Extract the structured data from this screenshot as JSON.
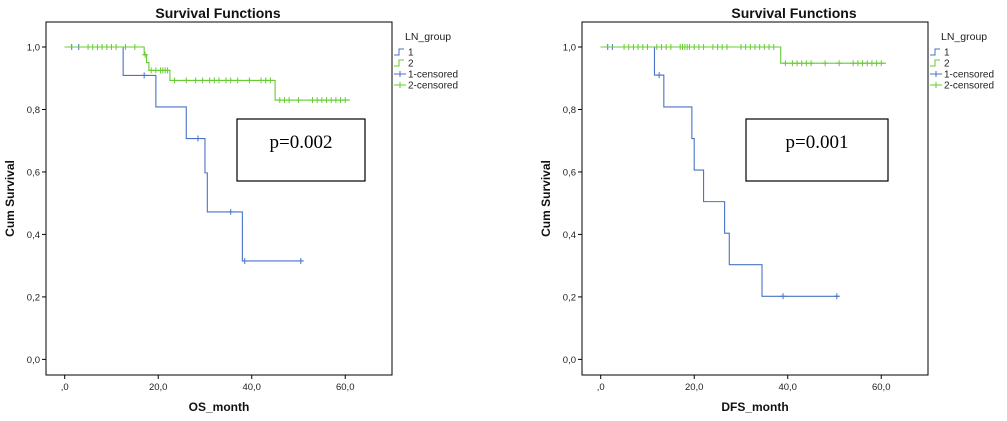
{
  "colors": {
    "group1": "#4a72c8",
    "group2": "#66cc33",
    "frame": "#000000",
    "background": "#ffffff"
  },
  "chart_data": [
    {
      "type": "line",
      "title": "Survival Functions",
      "xlabel": "OS_month",
      "ylabel": "Cum Survival",
      "xlim": [
        -4,
        70
      ],
      "ylim": [
        -0.05,
        1.08
      ],
      "xticks": [
        0,
        20,
        40,
        60
      ],
      "xtick_labels": [
        ",0",
        "20,0",
        "40,0",
        "60,0"
      ],
      "yticks": [
        0,
        0.2,
        0.4,
        0.6,
        0.8,
        1.0
      ],
      "ytick_labels": [
        "0,0",
        "0,2",
        "0,4",
        "0,6",
        "0,8",
        "1,0"
      ],
      "legend_title": "LN_group",
      "legend": [
        "1",
        "2",
        "1-censored",
        "2-censored"
      ],
      "annotation": "p=0.002",
      "series": [
        {
          "name": "1",
          "steps": [
            [
              0,
              1.0
            ],
            [
              12.5,
              0.909
            ],
            [
              19.5,
              0.808
            ],
            [
              26.0,
              0.707
            ],
            [
              30.0,
              0.597
            ],
            [
              30.5,
              0.472
            ],
            [
              38.0,
              0.315
            ],
            [
              51.0,
              0.315
            ]
          ],
          "censored": [
            [
              1.5,
              1.0
            ],
            [
              3.0,
              1.0
            ],
            [
              17.0,
              0.909
            ],
            [
              28.5,
              0.707
            ],
            [
              35.5,
              0.472
            ],
            [
              38.5,
              0.315
            ],
            [
              50.5,
              0.315
            ]
          ]
        },
        {
          "name": "2",
          "steps": [
            [
              0,
              1.0
            ],
            [
              17.0,
              0.975
            ],
            [
              17.5,
              0.95
            ],
            [
              18.0,
              0.925
            ],
            [
              22.5,
              0.893
            ],
            [
              45.0,
              0.83
            ],
            [
              61.0,
              0.83
            ]
          ],
          "censored": [
            [
              5,
              1.0
            ],
            [
              6,
              1.0
            ],
            [
              7,
              1.0
            ],
            [
              8,
              1.0
            ],
            [
              9,
              1.0
            ],
            [
              10,
              1.0
            ],
            [
              11,
              1.0
            ],
            [
              13,
              1.0
            ],
            [
              15,
              1.0
            ],
            [
              17.2,
              0.975
            ],
            [
              18.5,
              0.925
            ],
            [
              19.5,
              0.925
            ],
            [
              20.5,
              0.925
            ],
            [
              21.0,
              0.925
            ],
            [
              21.5,
              0.925
            ],
            [
              22.0,
              0.925
            ],
            [
              23.5,
              0.893
            ],
            [
              26,
              0.893
            ],
            [
              28,
              0.893
            ],
            [
              29.5,
              0.893
            ],
            [
              31,
              0.893
            ],
            [
              32,
              0.893
            ],
            [
              33,
              0.893
            ],
            [
              34.5,
              0.893
            ],
            [
              35.5,
              0.893
            ],
            [
              37,
              0.893
            ],
            [
              39.5,
              0.893
            ],
            [
              42,
              0.893
            ],
            [
              43,
              0.893
            ],
            [
              44,
              0.893
            ],
            [
              46,
              0.83
            ],
            [
              47,
              0.83
            ],
            [
              48,
              0.83
            ],
            [
              50,
              0.83
            ],
            [
              53,
              0.83
            ],
            [
              54,
              0.83
            ],
            [
              55,
              0.83
            ],
            [
              56,
              0.83
            ],
            [
              57,
              0.83
            ],
            [
              58,
              0.83
            ],
            [
              59,
              0.83
            ],
            [
              60,
              0.83
            ]
          ]
        }
      ]
    },
    {
      "type": "line",
      "title": "Survival Functions",
      "xlabel": "DFS_month",
      "ylabel": "Cum Survival",
      "xlim": [
        -4,
        70
      ],
      "ylim": [
        -0.05,
        1.08
      ],
      "xticks": [
        0,
        20,
        40,
        60
      ],
      "xtick_labels": [
        ",0",
        "20,0",
        "40,0",
        "60,0"
      ],
      "yticks": [
        0,
        0.2,
        0.4,
        0.6,
        0.8,
        1.0
      ],
      "ytick_labels": [
        "0,0",
        "0,2",
        "0,4",
        "0,6",
        "0,8",
        "1,0"
      ],
      "legend_title": "LN_group",
      "legend": [
        "1",
        "2",
        "1-censored",
        "2-censored"
      ],
      "annotation": "p=0.001",
      "series": [
        {
          "name": "1",
          "steps": [
            [
              0,
              1.0
            ],
            [
              11.5,
              0.91
            ],
            [
              13.5,
              0.808
            ],
            [
              19.5,
              0.707
            ],
            [
              20.0,
              0.606
            ],
            [
              22.0,
              0.505
            ],
            [
              26.5,
              0.404
            ],
            [
              27.5,
              0.303
            ],
            [
              34.5,
              0.202
            ],
            [
              51.0,
              0.202
            ]
          ],
          "censored": [
            [
              1.5,
              1.0
            ],
            [
              2.5,
              1.0
            ],
            [
              12.5,
              0.91
            ],
            [
              39.0,
              0.202
            ],
            [
              50.5,
              0.202
            ]
          ]
        },
        {
          "name": "2",
          "steps": [
            [
              0,
              1.0
            ],
            [
              38.5,
              0.948
            ],
            [
              61.0,
              0.948
            ]
          ],
          "censored": [
            [
              5,
              1.0
            ],
            [
              6,
              1.0
            ],
            [
              7,
              1.0
            ],
            [
              8,
              1.0
            ],
            [
              9,
              1.0
            ],
            [
              10,
              1.0
            ],
            [
              12,
              1.0
            ],
            [
              13,
              1.0
            ],
            [
              14,
              1.0
            ],
            [
              15,
              1.0
            ],
            [
              17,
              1.0
            ],
            [
              17.5,
              1.0
            ],
            [
              18,
              1.0
            ],
            [
              18.5,
              1.0
            ],
            [
              19,
              1.0
            ],
            [
              20,
              1.0
            ],
            [
              21,
              1.0
            ],
            [
              22,
              1.0
            ],
            [
              24,
              1.0
            ],
            [
              25,
              1.0
            ],
            [
              26,
              1.0
            ],
            [
              27,
              1.0
            ],
            [
              30,
              1.0
            ],
            [
              31,
              1.0
            ],
            [
              32,
              1.0
            ],
            [
              33,
              1.0
            ],
            [
              34,
              1.0
            ],
            [
              35,
              1.0
            ],
            [
              36,
              1.0
            ],
            [
              37,
              1.0
            ],
            [
              39.5,
              0.948
            ],
            [
              41,
              0.948
            ],
            [
              42,
              0.948
            ],
            [
              43,
              0.948
            ],
            [
              44,
              0.948
            ],
            [
              45,
              0.948
            ],
            [
              48,
              0.948
            ],
            [
              51,
              0.948
            ],
            [
              54,
              0.948
            ],
            [
              55,
              0.948
            ],
            [
              56,
              0.948
            ],
            [
              57,
              0.948
            ],
            [
              58,
              0.948
            ],
            [
              59,
              0.948
            ],
            [
              60,
              0.948
            ]
          ]
        }
      ]
    }
  ]
}
